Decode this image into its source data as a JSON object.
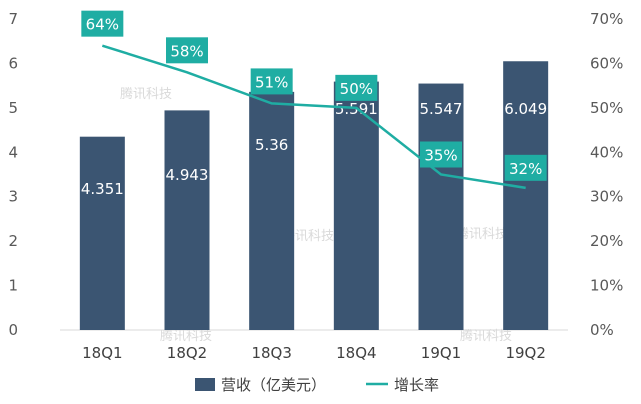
{
  "chart_data": {
    "type": "bar",
    "categories": [
      "18Q1",
      "18Q2",
      "18Q3",
      "18Q4",
      "19Q1",
      "19Q2"
    ],
    "series": [
      {
        "name": "营收（亿美元）",
        "type": "bar",
        "axis": "left",
        "values": [
          4.351,
          4.943,
          5.36,
          5.591,
          5.547,
          6.049
        ],
        "labels": [
          "4.351",
          "4.943",
          "5.36",
          "5.591",
          "5.547",
          "6.049"
        ]
      },
      {
        "name": "增长率",
        "type": "line",
        "axis": "right",
        "values": [
          0.64,
          0.58,
          0.51,
          0.5,
          0.35,
          0.32
        ],
        "labels": [
          "64%",
          "58%",
          "51%",
          "50%",
          "35%",
          "32%"
        ]
      }
    ],
    "left_axis": {
      "ylim": [
        0,
        7
      ],
      "ticks": [
        "0",
        "1",
        "2",
        "3",
        "4",
        "5",
        "6",
        "7"
      ]
    },
    "right_axis": {
      "ylim": [
        0,
        0.7
      ],
      "ticks": [
        "0%",
        "10%",
        "20%",
        "30%",
        "40%",
        "50%",
        "60%",
        "70%"
      ]
    },
    "legend_position": "bottom",
    "grid": false,
    "colors": {
      "bar": "#3b5572",
      "line": "#1fada3",
      "line_label_bg": "#1fada3"
    }
  },
  "watermark": "腾讯科技"
}
